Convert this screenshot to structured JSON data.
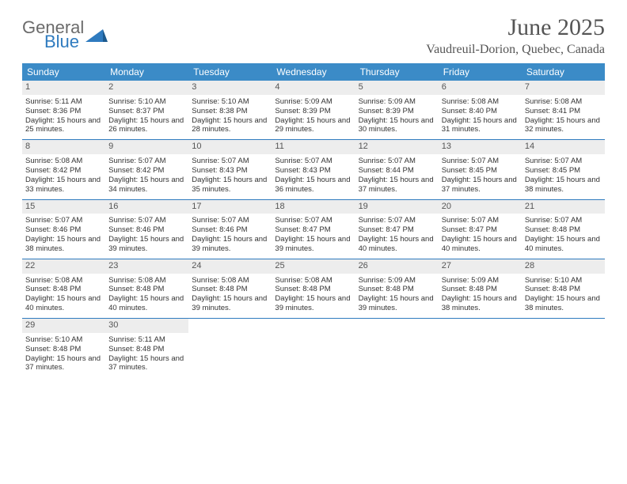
{
  "brand": {
    "text1": "General",
    "text2": "Blue"
  },
  "title": {
    "month": "June 2025",
    "location": "Vaudreuil-Dorion, Quebec, Canada"
  },
  "colors": {
    "header_bg": "#3b8bc7",
    "header_text": "#ffffff",
    "daynum_bg": "#ededed",
    "text": "#333333",
    "rule": "#2f7bbf",
    "brand_gray": "#6b6b6b",
    "brand_blue": "#2f7bbf"
  },
  "dow": [
    "Sunday",
    "Monday",
    "Tuesday",
    "Wednesday",
    "Thursday",
    "Friday",
    "Saturday"
  ],
  "days": [
    {
      "n": 1,
      "sunrise": "5:11 AM",
      "sunset": "8:36 PM",
      "dlh": 15,
      "dlm": 25
    },
    {
      "n": 2,
      "sunrise": "5:10 AM",
      "sunset": "8:37 PM",
      "dlh": 15,
      "dlm": 26
    },
    {
      "n": 3,
      "sunrise": "5:10 AM",
      "sunset": "8:38 PM",
      "dlh": 15,
      "dlm": 28
    },
    {
      "n": 4,
      "sunrise": "5:09 AM",
      "sunset": "8:39 PM",
      "dlh": 15,
      "dlm": 29
    },
    {
      "n": 5,
      "sunrise": "5:09 AM",
      "sunset": "8:39 PM",
      "dlh": 15,
      "dlm": 30
    },
    {
      "n": 6,
      "sunrise": "5:08 AM",
      "sunset": "8:40 PM",
      "dlh": 15,
      "dlm": 31
    },
    {
      "n": 7,
      "sunrise": "5:08 AM",
      "sunset": "8:41 PM",
      "dlh": 15,
      "dlm": 32
    },
    {
      "n": 8,
      "sunrise": "5:08 AM",
      "sunset": "8:42 PM",
      "dlh": 15,
      "dlm": 33
    },
    {
      "n": 9,
      "sunrise": "5:07 AM",
      "sunset": "8:42 PM",
      "dlh": 15,
      "dlm": 34
    },
    {
      "n": 10,
      "sunrise": "5:07 AM",
      "sunset": "8:43 PM",
      "dlh": 15,
      "dlm": 35
    },
    {
      "n": 11,
      "sunrise": "5:07 AM",
      "sunset": "8:43 PM",
      "dlh": 15,
      "dlm": 36
    },
    {
      "n": 12,
      "sunrise": "5:07 AM",
      "sunset": "8:44 PM",
      "dlh": 15,
      "dlm": 37
    },
    {
      "n": 13,
      "sunrise": "5:07 AM",
      "sunset": "8:45 PM",
      "dlh": 15,
      "dlm": 37
    },
    {
      "n": 14,
      "sunrise": "5:07 AM",
      "sunset": "8:45 PM",
      "dlh": 15,
      "dlm": 38
    },
    {
      "n": 15,
      "sunrise": "5:07 AM",
      "sunset": "8:46 PM",
      "dlh": 15,
      "dlm": 38
    },
    {
      "n": 16,
      "sunrise": "5:07 AM",
      "sunset": "8:46 PM",
      "dlh": 15,
      "dlm": 39
    },
    {
      "n": 17,
      "sunrise": "5:07 AM",
      "sunset": "8:46 PM",
      "dlh": 15,
      "dlm": 39
    },
    {
      "n": 18,
      "sunrise": "5:07 AM",
      "sunset": "8:47 PM",
      "dlh": 15,
      "dlm": 39
    },
    {
      "n": 19,
      "sunrise": "5:07 AM",
      "sunset": "8:47 PM",
      "dlh": 15,
      "dlm": 40
    },
    {
      "n": 20,
      "sunrise": "5:07 AM",
      "sunset": "8:47 PM",
      "dlh": 15,
      "dlm": 40
    },
    {
      "n": 21,
      "sunrise": "5:07 AM",
      "sunset": "8:48 PM",
      "dlh": 15,
      "dlm": 40
    },
    {
      "n": 22,
      "sunrise": "5:08 AM",
      "sunset": "8:48 PM",
      "dlh": 15,
      "dlm": 40
    },
    {
      "n": 23,
      "sunrise": "5:08 AM",
      "sunset": "8:48 PM",
      "dlh": 15,
      "dlm": 40
    },
    {
      "n": 24,
      "sunrise": "5:08 AM",
      "sunset": "8:48 PM",
      "dlh": 15,
      "dlm": 39
    },
    {
      "n": 25,
      "sunrise": "5:08 AM",
      "sunset": "8:48 PM",
      "dlh": 15,
      "dlm": 39
    },
    {
      "n": 26,
      "sunrise": "5:09 AM",
      "sunset": "8:48 PM",
      "dlh": 15,
      "dlm": 39
    },
    {
      "n": 27,
      "sunrise": "5:09 AM",
      "sunset": "8:48 PM",
      "dlh": 15,
      "dlm": 38
    },
    {
      "n": 28,
      "sunrise": "5:10 AM",
      "sunset": "8:48 PM",
      "dlh": 15,
      "dlm": 38
    },
    {
      "n": 29,
      "sunrise": "5:10 AM",
      "sunset": "8:48 PM",
      "dlh": 15,
      "dlm": 37
    },
    {
      "n": 30,
      "sunrise": "5:11 AM",
      "sunset": "8:48 PM",
      "dlh": 15,
      "dlm": 37
    }
  ],
  "labels": {
    "sunrise": "Sunrise:",
    "sunset": "Sunset:",
    "daylight": "Daylight:",
    "hours": "hours",
    "and": "and",
    "minutes": "minutes."
  },
  "layout": {
    "start_weekday": 0,
    "days_in_month": 30,
    "cols": 7
  }
}
